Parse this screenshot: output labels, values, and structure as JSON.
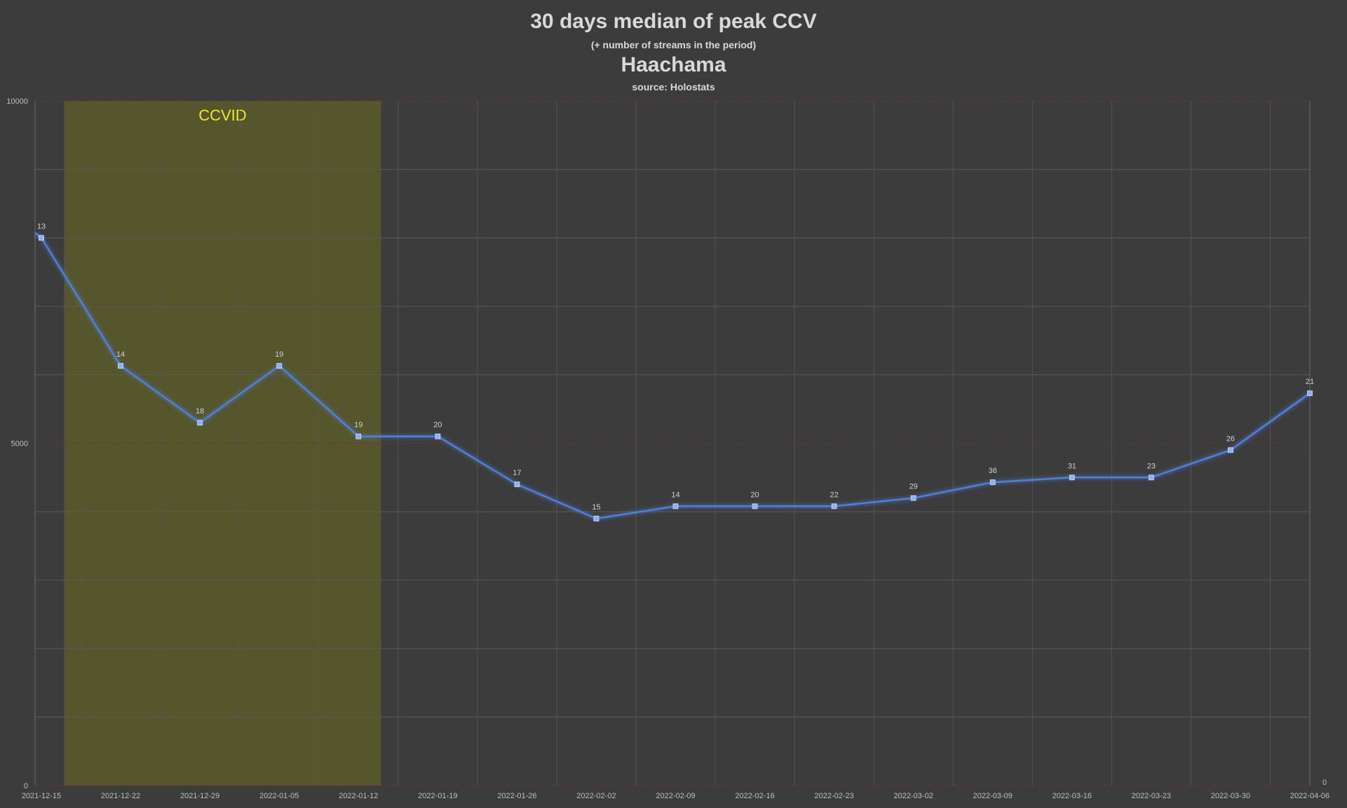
{
  "chart_data": {
    "type": "line",
    "title": "30 days median of peak CCV",
    "subtitle": "(+ number of streams in the period)",
    "name": "Haachama",
    "source": "source: Holostats",
    "x": [
      "2021-12-15",
      "2021-12-22",
      "2021-12-29",
      "2022-01-05",
      "2022-01-12",
      "2022-01-19",
      "2022-01-26",
      "2022-02-02",
      "2022-02-09",
      "2022-02-16",
      "2022-02-23",
      "2022-03-02",
      "2022-03-09",
      "2022-03-16",
      "2022-03-23",
      "2022-03-30",
      "2022-04-06"
    ],
    "series": [
      {
        "values": [
          8000,
          6130,
          5300,
          6130,
          5100,
          5100,
          4400,
          3900,
          4080,
          4080,
          4080,
          4200,
          4430,
          4500,
          4500,
          4900,
          5730
        ],
        "labels": [
          "13",
          "14",
          "18",
          "19",
          "19",
          "20",
          "17",
          "15",
          "14",
          "20",
          "22",
          "29",
          "36",
          "31",
          "23",
          "26",
          "21"
        ],
        "color": "#4f7fd8"
      }
    ],
    "ylim": [
      0,
      10000
    ],
    "y_tick_labels": [
      "0",
      "5000",
      "10000"
    ],
    "y_right_tick_label": "0",
    "grid_step": 1000,
    "grid": true,
    "shaded_region": {
      "label": "CCVID",
      "x_start": "2021-12-17",
      "x_end": "2022-01-14",
      "color": "#5a5a2a"
    },
    "background": "#3c3c3c",
    "line_color": "#4f7fd8",
    "marker_color": "#8fb0f0"
  }
}
